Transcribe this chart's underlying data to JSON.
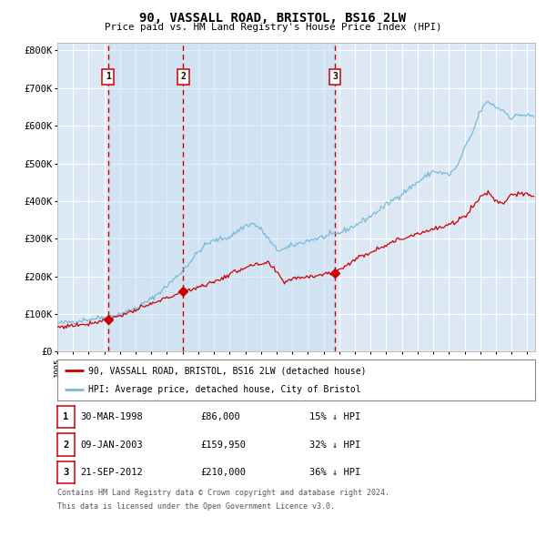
{
  "title": "90, VASSALL ROAD, BRISTOL, BS16 2LW",
  "subtitle": "Price paid vs. HM Land Registry's House Price Index (HPI)",
  "plot_bg_color": "#dce9f5",
  "grid_color": "#ffffff",
  "hpi_color": "#7ab8d9",
  "price_color": "#cc0000",
  "marker_color": "#cc0000",
  "vline_color": "#cc0000",
  "yticks": [
    0,
    100000,
    200000,
    300000,
    400000,
    500000,
    600000,
    700000,
    800000
  ],
  "ytick_labels": [
    "£0",
    "£100K",
    "£200K",
    "£300K",
    "£400K",
    "£500K",
    "£600K",
    "£700K",
    "£800K"
  ],
  "xmin": 1995.0,
  "xmax": 2025.5,
  "ymin": 0,
  "ymax": 820000,
  "sale_dates": [
    1998.24,
    2003.03,
    2012.72
  ],
  "sale_prices": [
    86000,
    159950,
    210000
  ],
  "sale_labels": [
    "1",
    "2",
    "3"
  ],
  "legend_red": "90, VASSALL ROAD, BRISTOL, BS16 2LW (detached house)",
  "legend_blue": "HPI: Average price, detached house, City of Bristol",
  "table_rows": [
    [
      "1",
      "30-MAR-1998",
      "£86,000",
      "15% ↓ HPI"
    ],
    [
      "2",
      "09-JAN-2003",
      "£159,950",
      "32% ↓ HPI"
    ],
    [
      "3",
      "21-SEP-2012",
      "£210,000",
      "36% ↓ HPI"
    ]
  ],
  "footnote1": "Contains HM Land Registry data © Crown copyright and database right 2024.",
  "footnote2": "This data is licensed under the Open Government Licence v3.0."
}
